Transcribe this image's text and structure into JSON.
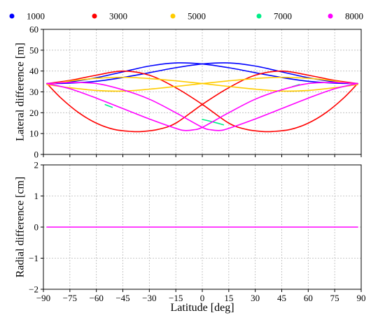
{
  "chart_data": [
    {
      "type": "line",
      "panel": "top",
      "ylabel": "Lateral difference [m]",
      "xlim": [
        -90,
        90
      ],
      "ylim": [
        0,
        60
      ],
      "xticks": [
        -90,
        -75,
        -60,
        -45,
        -30,
        -15,
        0,
        15,
        30,
        45,
        60,
        75,
        90
      ],
      "yticks": [
        0,
        10,
        20,
        30,
        40,
        50,
        60
      ],
      "grid": true,
      "legend_position": "top, above plot",
      "series": [
        {
          "name": "1000",
          "color": "#0000ff",
          "curves": [
            {
              "x": [
                -88,
                -75,
                -60,
                -45,
                -30,
                -15,
                0,
                15,
                30,
                45,
                60,
                75,
                88
              ],
              "y": [
                34,
                34.8,
                36.8,
                39.6,
                42.4,
                43.9,
                43.4,
                41.6,
                39.2,
                36.9,
                35.1,
                34.2,
                34
              ]
            },
            {
              "x": [
                -88,
                -75,
                -60,
                -45,
                -30,
                -15,
                0,
                15,
                30,
                45,
                60,
                75,
                88
              ],
              "y": [
                34,
                34.2,
                35.1,
                36.9,
                39.2,
                41.6,
                43.4,
                43.9,
                42.4,
                39.6,
                36.8,
                34.8,
                34
              ]
            }
          ]
        },
        {
          "name": "3000",
          "color": "#ff0000",
          "curves": [
            {
              "x": [
                -88,
                -80,
                -70,
                -60,
                -50,
                -40,
                -34,
                -25,
                -15,
                0,
                15,
                30,
                45,
                60,
                75,
                88
              ],
              "y": [
                34,
                27,
                20,
                15,
                12,
                11,
                11,
                12,
                15,
                24,
                32,
                38,
                40,
                38,
                35.5,
                34
              ]
            },
            {
              "x": [
                -88,
                -75,
                -60,
                -45,
                -30,
                -15,
                0,
                15,
                25,
                34,
                40,
                50,
                60,
                70,
                80,
                88
              ],
              "y": [
                34,
                35.5,
                38,
                40,
                38,
                32,
                24,
                15,
                12,
                11,
                11,
                12,
                15,
                20,
                27,
                34
              ]
            }
          ]
        },
        {
          "name": "5000",
          "color": "#ffcc00",
          "curves": [
            {
              "x": [
                -88,
                -75,
                -60,
                -45,
                -30,
                -15,
                0,
                15,
                30,
                45,
                60,
                75,
                88
              ],
              "y": [
                33.5,
                35.2,
                36.5,
                37,
                36.4,
                35.3,
                34,
                32.6,
                31.3,
                30.4,
                30.7,
                32,
                33.5
              ]
            },
            {
              "x": [
                -88,
                -75,
                -60,
                -45,
                -30,
                -15,
                0,
                15,
                30,
                45,
                60,
                75,
                88
              ],
              "y": [
                33.5,
                32,
                30.7,
                30.4,
                31.3,
                32.6,
                34,
                35.3,
                36.4,
                37,
                36.5,
                35.2,
                33.5
              ]
            }
          ]
        },
        {
          "name": "7000",
          "color": "#00ee88",
          "curves": [
            {
              "x": [
                -55,
                -51
              ],
              "y": [
                23.9,
                22.6
              ]
            },
            {
              "x": [
                0,
                6,
                12
              ],
              "y": [
                16.8,
                15.6,
                14.2
              ]
            },
            {
              "x": [
                51,
                55
              ],
              "y": [
                32.5,
                33.5
              ]
            }
          ]
        },
        {
          "name": "8000",
          "color": "#ff00ff",
          "curves": [
            {
              "x": [
                -88,
                -75,
                -60,
                -45,
                -30,
                -15,
                -10,
                -5,
                0,
                15,
                30,
                45,
                60,
                75,
                88
              ],
              "y": [
                34,
                31.5,
                27,
                22,
                17,
                12.5,
                11.5,
                11.8,
                13,
                20,
                26.5,
                31,
                34,
                34.5,
                34
              ]
            },
            {
              "x": [
                -88,
                -75,
                -60,
                -45,
                -30,
                -15,
                0,
                5,
                10,
                15,
                30,
                45,
                60,
                75,
                88
              ],
              "y": [
                34,
                34.5,
                34,
                31,
                26.5,
                20,
                13,
                11.8,
                11.5,
                12.5,
                17,
                22,
                27,
                31.5,
                34
              ]
            }
          ]
        }
      ]
    },
    {
      "type": "line",
      "panel": "bottom",
      "xlabel": "Latitude [deg]",
      "ylabel": "Radial difference [cm]",
      "xlim": [
        -90,
        90
      ],
      "ylim": [
        -2,
        2
      ],
      "xticks": [
        -90,
        -75,
        -60,
        -45,
        -30,
        -15,
        0,
        15,
        30,
        45,
        60,
        75,
        90
      ],
      "yticks": [
        -2,
        -1,
        0,
        1,
        2
      ],
      "ytick_labels": [
        "−2",
        "−1",
        "0",
        "1",
        "2"
      ],
      "grid": true,
      "series": [
        {
          "name": "8000",
          "color": "#ff00ff",
          "curves": [
            {
              "x": [
                -88,
                88
              ],
              "y": [
                0,
                0
              ]
            }
          ]
        }
      ]
    }
  ],
  "xtick_labels": [
    "−90",
    "−75",
    "−60",
    "−45",
    "−30",
    "−15",
    "0",
    "15",
    "30",
    "45",
    "60",
    "75",
    "90"
  ]
}
